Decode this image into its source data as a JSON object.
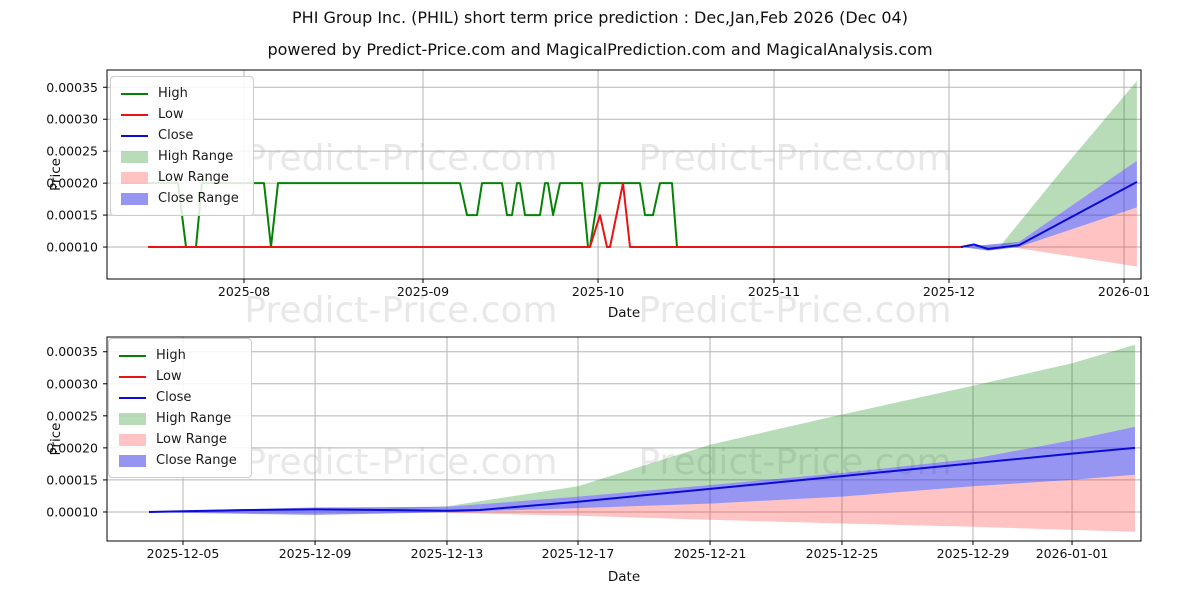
{
  "header": {
    "title": "PHI Group Inc. (PHIL) short term price prediction : Dec,Jan,Feb 2026 (Dec 04)",
    "subtitle": "powered by Predict-Price.com and MagicalPrediction.com and MagicalAnalysis.com"
  },
  "watermark": {
    "text": "Predict-Price.com",
    "color": "#d9d9d9"
  },
  "colors": {
    "high_line": "#058205",
    "low_line": "#e81414",
    "close_line": "#0b0bd8",
    "high_range_fill": "rgba(0,128,0,0.28)",
    "low_range_fill": "rgba(255,40,40,0.28)",
    "close_range_fill": "rgba(45,45,230,0.50)",
    "grid": "#b5b5b5",
    "frame": "#000000"
  },
  "legend_items": [
    {
      "label": "High",
      "type": "line",
      "color": "#058205"
    },
    {
      "label": "Low",
      "type": "line",
      "color": "#e81414"
    },
    {
      "label": "Close",
      "type": "line",
      "color": "#0b0bd8"
    },
    {
      "label": "High Range",
      "type": "patch",
      "color": "rgba(0,128,0,0.28)"
    },
    {
      "label": "Low Range",
      "type": "patch",
      "color": "rgba(255,40,40,0.28)"
    },
    {
      "label": "Close Range",
      "type": "patch",
      "color": "rgba(45,45,230,0.50)"
    }
  ],
  "chart_data": [
    {
      "type": "line",
      "name": "monthly-history-with-prediction",
      "xlabel": "Date",
      "ylabel": "Price",
      "grid": true,
      "legend_position": "upper left",
      "ylim": [
        5e-05,
        0.000377
      ],
      "yticks": [
        {
          "label": "0.00010",
          "v": 0.0001
        },
        {
          "label": "0.00015",
          "v": 0.00015
        },
        {
          "label": "0.00020",
          "v": 0.0002
        },
        {
          "label": "0.00025",
          "v": 0.00025
        },
        {
          "label": "0.00030",
          "v": 0.0003
        },
        {
          "label": "0.00035",
          "v": 0.00035
        }
      ],
      "xticks": [
        {
          "label": "2025-08",
          "t": 0.1325
        },
        {
          "label": "2025-09",
          "t": 0.3056
        },
        {
          "label": "2025-10",
          "t": 0.4749
        },
        {
          "label": "2025-11",
          "t": 0.6451
        },
        {
          "label": "2025-12",
          "t": 0.8143
        },
        {
          "label": "2026-01",
          "t": 0.9836
        }
      ],
      "bands": [
        {
          "name": "High Range",
          "color": "rgba(0,128,0,0.28)",
          "top": [
            [
              0.864,
              0.000102
            ],
            [
              0.93,
              0.000233
            ],
            [
              0.996,
              0.00036
            ]
          ],
          "bottom": [
            [
              0.864,
              0.000101
            ],
            [
              0.882,
              0.000108
            ],
            [
              0.996,
              0.000235
            ]
          ]
        },
        {
          "name": "Low Range",
          "color": "rgba(255,40,40,0.28)",
          "top": [
            [
              0.874,
              0.0001
            ],
            [
              0.882,
              0.0001
            ],
            [
              0.996,
              0.000162
            ]
          ],
          "bottom": [
            [
              0.874,
              0.0001
            ],
            [
              0.996,
              6.95e-05
            ]
          ]
        },
        {
          "name": "Close Range",
          "color": "rgba(45,45,230,0.50)",
          "top": [
            [
              0.826,
              0.0001
            ],
            [
              0.882,
              0.000108
            ],
            [
              0.996,
              0.000235
            ]
          ],
          "bottom": [
            [
              0.826,
              0.0001
            ],
            [
              0.852,
              9.45e-05
            ],
            [
              0.882,
              0.0001
            ],
            [
              0.996,
              0.000162
            ]
          ]
        }
      ],
      "series": [
        {
          "name": "High",
          "color": "#058205",
          "points": [
            [
              0.0397,
              0.0002
            ],
            [
              0.0687,
              0.0002
            ],
            [
              0.0764,
              0.0001
            ],
            [
              0.0861,
              0.0001
            ],
            [
              0.0919,
              0.0002
            ],
            [
              0.1518,
              0.0002
            ],
            [
              0.1586,
              0.0001
            ],
            [
              0.1654,
              0.0002
            ],
            [
              0.3414,
              0.0002
            ],
            [
              0.3482,
              0.00015
            ],
            [
              0.3578,
              0.00015
            ],
            [
              0.3627,
              0.0002
            ],
            [
              0.382,
              0.0002
            ],
            [
              0.3868,
              0.00015
            ],
            [
              0.3917,
              0.00015
            ],
            [
              0.3965,
              0.0002
            ],
            [
              0.3994,
              0.0002
            ],
            [
              0.4043,
              0.00015
            ],
            [
              0.4188,
              0.00015
            ],
            [
              0.4236,
              0.0002
            ],
            [
              0.4265,
              0.0002
            ],
            [
              0.4314,
              0.00015
            ],
            [
              0.4381,
              0.0002
            ],
            [
              0.4594,
              0.0002
            ],
            [
              0.4652,
              0.0001
            ],
            [
              0.4671,
              0.0001
            ],
            [
              0.4768,
              0.0002
            ],
            [
              0.5155,
              0.0002
            ],
            [
              0.5203,
              0.00015
            ],
            [
              0.528,
              0.00015
            ],
            [
              0.5348,
              0.0002
            ],
            [
              0.5464,
              0.0002
            ],
            [
              0.5513,
              0.0001
            ],
            [
              0.8279,
              0.0001
            ]
          ]
        },
        {
          "name": "Low",
          "color": "#e81414",
          "points": [
            [
              0.0397,
              0.0001
            ],
            [
              0.4671,
              0.0001
            ],
            [
              0.4768,
              0.00015
            ],
            [
              0.4836,
              0.0001
            ],
            [
              0.4865,
              0.0001
            ],
            [
              0.499,
              0.0002
            ],
            [
              0.5058,
              0.0001
            ],
            [
              0.8279,
              0.0001
            ]
          ]
        },
        {
          "name": "Close",
          "color": "#0b0bd8",
          "points": [
            [
              0.8259,
              0.0001
            ],
            [
              0.8385,
              0.000104
            ],
            [
              0.852,
              9.7e-05
            ],
            [
              0.8675,
              0.0001
            ],
            [
              0.882,
              0.000103
            ],
            [
              0.9961,
              0.000202
            ]
          ]
        }
      ]
    },
    {
      "type": "line",
      "name": "daily-prediction-detail",
      "xlabel": "Date",
      "ylabel": "Price",
      "grid": true,
      "legend_position": "upper left",
      "ylim": [
        5.47e-05,
        0.000373
      ],
      "yticks": [
        {
          "label": "0.00010",
          "v": 0.0001
        },
        {
          "label": "0.00015",
          "v": 0.00015
        },
        {
          "label": "0.00020",
          "v": 0.0002
        },
        {
          "label": "0.00025",
          "v": 0.00025
        },
        {
          "label": "0.00030",
          "v": 0.0003
        },
        {
          "label": "0.00035",
          "v": 0.00035
        }
      ],
      "xticks": [
        {
          "label": "2025-12-05",
          "t": 0.0735
        },
        {
          "label": "2025-12-09",
          "t": 0.2012
        },
        {
          "label": "2025-12-13",
          "t": 0.3288
        },
        {
          "label": "2025-12-17",
          "t": 0.4555
        },
        {
          "label": "2025-12-21",
          "t": 0.5832
        },
        {
          "label": "2025-12-25",
          "t": 0.7108
        },
        {
          "label": "2025-12-29",
          "t": 0.8375
        },
        {
          "label": "2026-01-01",
          "t": 0.9333
        }
      ],
      "bands": [
        {
          "name": "High Range",
          "color": "rgba(0,128,0,0.28)",
          "top": [
            [
              0.2447,
              0.000103
            ],
            [
              0.3288,
              0.000109
            ],
            [
              0.4555,
              0.00014
            ],
            [
              0.5832,
              0.000205
            ],
            [
              0.7108,
              0.000252
            ],
            [
              0.8375,
              0.000297
            ],
            [
              0.9333,
              0.000332
            ],
            [
              0.9942,
              0.000361
            ]
          ],
          "bottom": [
            [
              0.2447,
              0.000102
            ],
            [
              0.3288,
              0.000108
            ],
            [
              0.4555,
              0.000124
            ],
            [
              0.5832,
              0.000142
            ],
            [
              0.7108,
              0.000161
            ],
            [
              0.8375,
              0.000183
            ],
            [
              0.9333,
              0.000212
            ],
            [
              0.9942,
              0.000233
            ]
          ]
        },
        {
          "name": "Low Range",
          "color": "rgba(255,40,40,0.28)",
          "top": [
            [
              0.3288,
              9.95e-05
            ],
            [
              0.4555,
              0.000106
            ],
            [
              0.5832,
              0.000113
            ],
            [
              0.7108,
              0.000124
            ],
            [
              0.8375,
              0.00014
            ],
            [
              0.9333,
              0.00015
            ],
            [
              0.9942,
              0.000158
            ]
          ],
          "bottom": [
            [
              0.3288,
              9.85e-05
            ],
            [
              0.4555,
              9.4e-05
            ],
            [
              0.5832,
              8.8e-05
            ],
            [
              0.7108,
              8.2e-05
            ],
            [
              0.8375,
              7.7e-05
            ],
            [
              0.9333,
              7.2e-05
            ],
            [
              0.9942,
              6.9e-05
            ]
          ]
        },
        {
          "name": "Close Range",
          "color": "rgba(45,45,230,0.50)",
          "top": [
            [
              0.0406,
              0.000101
            ],
            [
              0.2012,
              0.000107
            ],
            [
              0.3288,
              0.000108
            ],
            [
              0.4555,
              0.000124
            ],
            [
              0.5832,
              0.000142
            ],
            [
              0.7108,
              0.000161
            ],
            [
              0.8375,
              0.000183
            ],
            [
              0.9333,
              0.000212
            ],
            [
              0.9942,
              0.000233
            ]
          ],
          "bottom": [
            [
              0.0406,
              9.95e-05
            ],
            [
              0.2012,
              9.55e-05
            ],
            [
              0.3288,
              9.95e-05
            ],
            [
              0.4555,
              0.000106
            ],
            [
              0.5832,
              0.000113
            ],
            [
              0.7108,
              0.000124
            ],
            [
              0.8375,
              0.00014
            ],
            [
              0.9333,
              0.00015
            ],
            [
              0.9942,
              0.000158
            ]
          ]
        }
      ],
      "series": [
        {
          "name": "Close",
          "color": "#0b0bd8",
          "points": [
            [
              0.0406,
              0.0001
            ],
            [
              0.0735,
              0.000101
            ],
            [
              0.1383,
              0.000103
            ],
            [
              0.2012,
              0.000104
            ],
            [
              0.265,
              0.000103
            ],
            [
              0.3288,
              0.000102
            ],
            [
              0.3607,
              0.000103
            ],
            [
              0.4555,
              0.000116
            ],
            [
              0.5832,
              0.000136
            ],
            [
              0.7108,
              0.000156
            ],
            [
              0.8375,
              0.000176
            ],
            [
              0.9333,
              0.000191
            ],
            [
              0.9942,
              0.0002
            ]
          ]
        }
      ]
    }
  ]
}
